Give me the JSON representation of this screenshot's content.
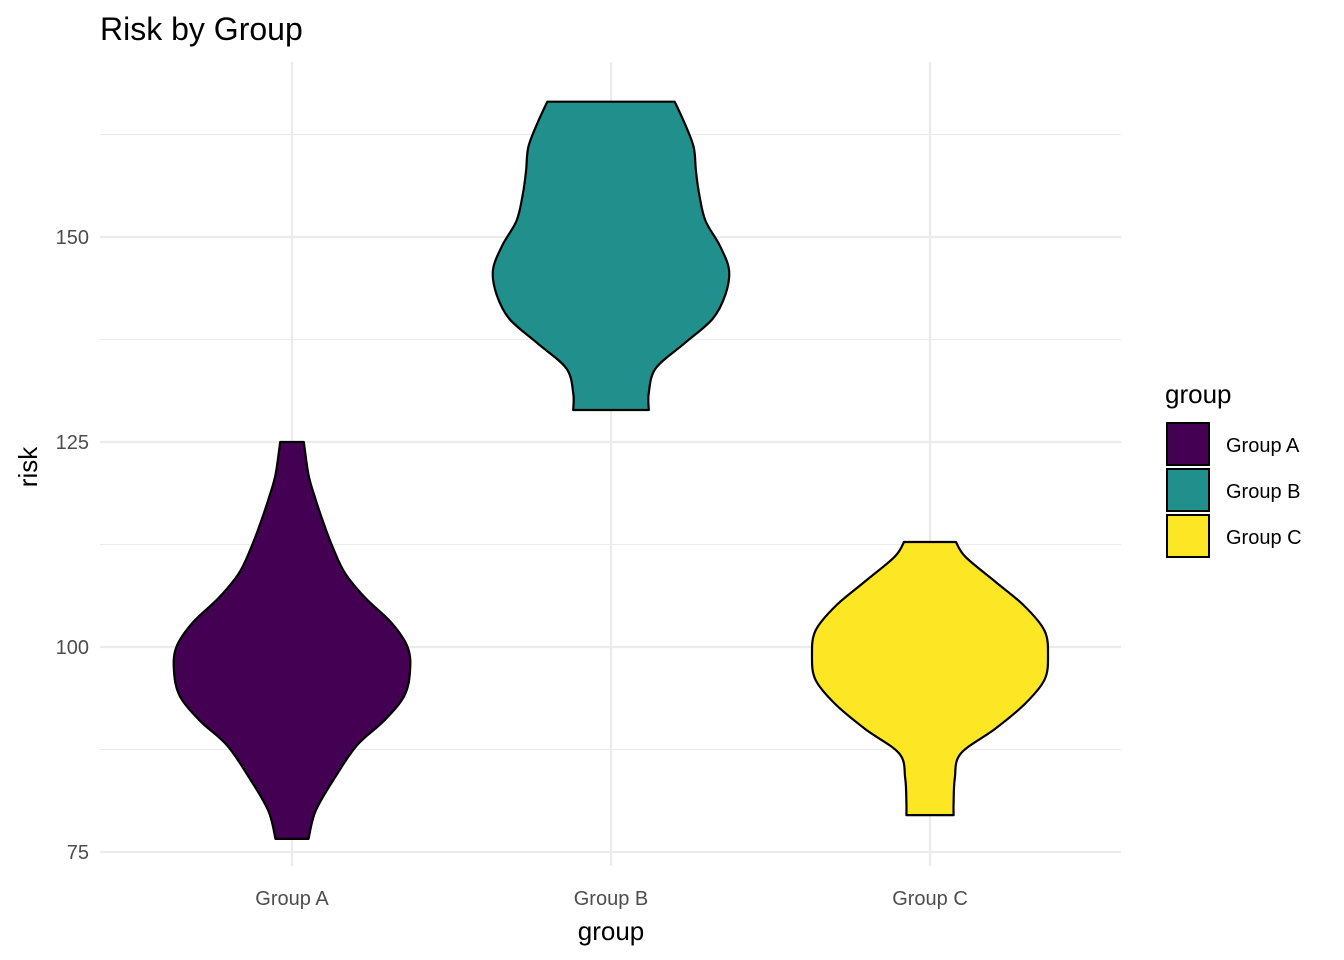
{
  "chart_data": {
    "type": "violin",
    "title": "Risk by Group",
    "xlabel": "group",
    "ylabel": "risk",
    "categories": [
      "Group A",
      "Group B",
      "Group C"
    ],
    "yticks": [
      75,
      100,
      125,
      150
    ],
    "ylim": [
      72.5,
      172
    ],
    "grid": true,
    "legend": {
      "title": "group",
      "position": "right",
      "entries": [
        {
          "label": "Group A",
          "color": "#440154"
        },
        {
          "label": "Group B",
          "color": "#21908C"
        },
        {
          "label": "Group C",
          "color": "#FDE725"
        }
      ]
    },
    "series": [
      {
        "category": "Group A",
        "color": "#440154",
        "min": 76.6,
        "max": 125.0,
        "profile": [
          [
            76.6,
            0.14
          ],
          [
            80,
            0.2
          ],
          [
            84,
            0.36
          ],
          [
            88,
            0.55
          ],
          [
            91,
            0.78
          ],
          [
            94,
            0.95
          ],
          [
            97,
            1.0
          ],
          [
            100,
            0.98
          ],
          [
            103,
            0.84
          ],
          [
            106,
            0.62
          ],
          [
            109,
            0.45
          ],
          [
            112,
            0.35
          ],
          [
            115,
            0.27
          ],
          [
            118,
            0.2
          ],
          [
            121,
            0.14
          ],
          [
            125,
            0.1
          ]
        ]
      },
      {
        "category": "Group B",
        "color": "#21908C",
        "min": 128.9,
        "max": 166.5,
        "profile": [
          [
            128.9,
            0.32
          ],
          [
            131,
            0.32
          ],
          [
            134,
            0.38
          ],
          [
            137,
            0.62
          ],
          [
            140,
            0.86
          ],
          [
            143,
            0.97
          ],
          [
            146,
            1.0
          ],
          [
            149,
            0.92
          ],
          [
            152,
            0.8
          ],
          [
            155,
            0.75
          ],
          [
            158,
            0.72
          ],
          [
            161,
            0.7
          ],
          [
            164,
            0.62
          ],
          [
            166.5,
            0.54
          ]
        ]
      },
      {
        "category": "Group C",
        "color": "#FDE725",
        "min": 79.5,
        "max": 112.8,
        "profile": [
          [
            79.5,
            0.2
          ],
          [
            81,
            0.2
          ],
          [
            84,
            0.21
          ],
          [
            87,
            0.26
          ],
          [
            90,
            0.55
          ],
          [
            93,
            0.8
          ],
          [
            96,
            0.97
          ],
          [
            99,
            1.0
          ],
          [
            102,
            0.97
          ],
          [
            105,
            0.8
          ],
          [
            108,
            0.55
          ],
          [
            111,
            0.3
          ],
          [
            112.8,
            0.22
          ]
        ]
      }
    ]
  }
}
